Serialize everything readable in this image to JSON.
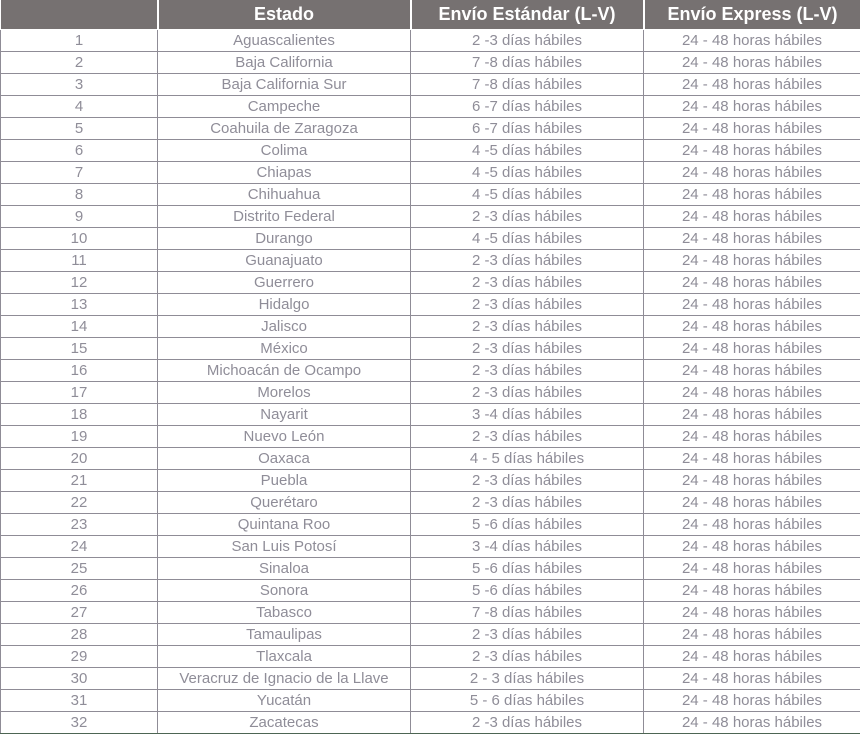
{
  "table": {
    "headers": {
      "num": "",
      "estado": "Estado",
      "estandar": "Envío Estándar (L-V)",
      "express": "Envío Express (L-V)"
    },
    "rows": [
      {
        "num": "1",
        "estado": "Aguascalientes",
        "estandar": "2 -3 días hábiles",
        "express": "24 - 48 horas hábiles"
      },
      {
        "num": "2",
        "estado": "Baja California",
        "estandar": "7 -8 días hábiles",
        "express": "24 - 48 horas hábiles"
      },
      {
        "num": "3",
        "estado": "Baja California Sur",
        "estandar": "7 -8 días hábiles",
        "express": "24 - 48 horas hábiles"
      },
      {
        "num": "4",
        "estado": "Campeche",
        "estandar": "6 -7 días hábiles",
        "express": "24 - 48 horas hábiles"
      },
      {
        "num": "5",
        "estado": "Coahuila de Zaragoza",
        "estandar": "6 -7 días hábiles",
        "express": "24 - 48 horas hábiles"
      },
      {
        "num": "6",
        "estado": "Colima",
        "estandar": "4 -5 días hábiles",
        "express": "24 - 48 horas hábiles"
      },
      {
        "num": "7",
        "estado": "Chiapas",
        "estandar": "4 -5 días hábiles",
        "express": "24 - 48 horas hábiles"
      },
      {
        "num": "8",
        "estado": "Chihuahua",
        "estandar": "4 -5 días hábiles",
        "express": "24 - 48 horas hábiles"
      },
      {
        "num": "9",
        "estado": "Distrito Federal",
        "estandar": "2 -3 días hábiles",
        "express": "24 - 48 horas hábiles"
      },
      {
        "num": "10",
        "estado": "Durango",
        "estandar": "4 -5 días hábiles",
        "express": "24 - 48 horas hábiles"
      },
      {
        "num": "11",
        "estado": "Guanajuato",
        "estandar": "2 -3 días hábiles",
        "express": "24 - 48 horas hábiles"
      },
      {
        "num": "12",
        "estado": "Guerrero",
        "estandar": "2 -3 días hábiles",
        "express": "24 - 48 horas hábiles"
      },
      {
        "num": "13",
        "estado": "Hidalgo",
        "estandar": "2 -3 días hábiles",
        "express": "24 - 48 horas hábiles"
      },
      {
        "num": "14",
        "estado": "Jalisco",
        "estandar": "2 -3 días hábiles",
        "express": "24 - 48 horas hábiles"
      },
      {
        "num": "15",
        "estado": "México",
        "estandar": "2 -3 días hábiles",
        "express": "24 - 48 horas hábiles"
      },
      {
        "num": "16",
        "estado": "Michoacán de Ocampo",
        "estandar": "2 -3 días hábiles",
        "express": "24 - 48 horas hábiles"
      },
      {
        "num": "17",
        "estado": "Morelos",
        "estandar": "2 -3 días hábiles",
        "express": "24 - 48 horas hábiles"
      },
      {
        "num": "18",
        "estado": "Nayarit",
        "estandar": "3 -4 días hábiles",
        "express": "24 - 48 horas hábiles"
      },
      {
        "num": "19",
        "estado": "Nuevo León",
        "estandar": "2 -3 días hábiles",
        "express": "24 - 48 horas hábiles"
      },
      {
        "num": "20",
        "estado": "Oaxaca",
        "estandar": "4 - 5 días hábiles",
        "express": "24 - 48 horas hábiles"
      },
      {
        "num": "21",
        "estado": "Puebla",
        "estandar": "2 -3 días hábiles",
        "express": "24 - 48 horas hábiles"
      },
      {
        "num": "22",
        "estado": "Querétaro",
        "estandar": "2 -3 días hábiles",
        "express": "24 - 48 horas hábiles"
      },
      {
        "num": "23",
        "estado": "Quintana Roo",
        "estandar": "5 -6 días hábiles",
        "express": "24 - 48 horas hábiles"
      },
      {
        "num": "24",
        "estado": "San Luis Potosí",
        "estandar": "3 -4 días hábiles",
        "express": "24 - 48 horas hábiles"
      },
      {
        "num": "25",
        "estado": "Sinaloa",
        "estandar": "5 -6 días hábiles",
        "express": "24 - 48 horas hábiles"
      },
      {
        "num": "26",
        "estado": "Sonora",
        "estandar": "5 -6 días hábiles",
        "express": "24 - 48 horas hábiles"
      },
      {
        "num": "27",
        "estado": "Tabasco",
        "estandar": "7 -8 días hábiles",
        "express": "24 - 48 horas hábiles"
      },
      {
        "num": "28",
        "estado": "Tamaulipas",
        "estandar": "2 -3 días hábiles",
        "express": "24 - 48 horas hábiles"
      },
      {
        "num": "29",
        "estado": "Tlaxcala",
        "estandar": "2 -3 días hábiles",
        "express": "24 - 48 horas hábiles"
      },
      {
        "num": "30",
        "estado": "Veracruz de Ignacio de la Llave",
        "estandar": "2 - 3 días hábiles",
        "express": "24 - 48 horas hábiles"
      },
      {
        "num": "31",
        "estado": "Yucatán",
        "estandar": "5 - 6 días hábiles",
        "express": "24 - 48 horas hábiles"
      },
      {
        "num": "32",
        "estado": "Zacatecas",
        "estandar": "2 -3 días hábiles",
        "express": "24 - 48 horas hábiles"
      }
    ]
  },
  "colors": {
    "header_bg": "#767171",
    "header_text": "#ffffff",
    "body_text": "#8f8d98",
    "grid_line": "#8f8c96",
    "bottom_accent": "#4d6553"
  }
}
